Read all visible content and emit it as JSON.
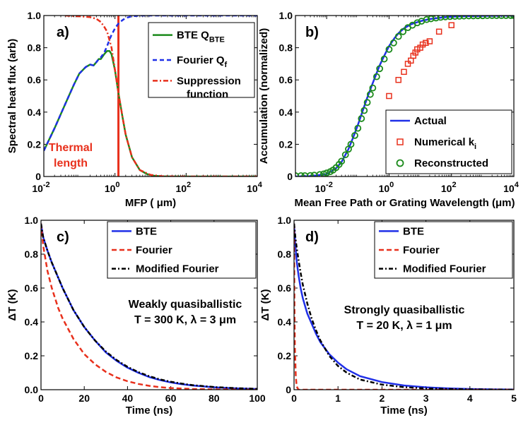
{
  "chart_data": [
    {
      "panel": "a)",
      "type": "line",
      "xscale": "log",
      "xlim": [
        0.01,
        10000
      ],
      "ylim": [
        0,
        1
      ],
      "xticks": [
        {
          "v": 0.01,
          "b": "10",
          "e": "-2"
        },
        {
          "v": 1,
          "b": "10",
          "e": "0"
        },
        {
          "v": 100,
          "b": "10",
          "e": "2"
        },
        {
          "v": 10000,
          "b": "10",
          "e": "4"
        }
      ],
      "yticks": [
        "0",
        "0.2",
        "0.4",
        "0.6",
        "0.8",
        "1.0"
      ],
      "xlabel": "MFP ( μm)",
      "ylabel": "Spectral heat flux (arb)",
      "annotation": {
        "lines": [
          "Thermal",
          "length"
        ],
        "color": "#e8301c"
      },
      "vline_x": 1.25,
      "legend_position": "top-right",
      "legend": [
        {
          "label": "BTE Q",
          "sub": "BTE"
        },
        {
          "label": "Fourier Q",
          "sub": "f"
        },
        {
          "label": "Suppression",
          "label2": "function"
        }
      ],
      "series": [
        {
          "name": "BTE QBTE",
          "color": "#1b8a1b",
          "dash": "solid",
          "x": [
            0.01,
            0.02,
            0.04,
            0.07,
            0.1,
            0.15,
            0.2,
            0.25,
            0.3,
            0.35,
            0.4,
            0.5,
            0.6,
            0.7,
            0.8,
            1.0,
            1.25,
            1.6,
            2,
            3,
            5,
            8,
            12,
            20,
            40,
            100,
            1000,
            10000
          ],
          "y": [
            0.16,
            0.3,
            0.45,
            0.57,
            0.64,
            0.68,
            0.695,
            0.69,
            0.71,
            0.73,
            0.73,
            0.76,
            0.78,
            0.78,
            0.76,
            0.66,
            0.52,
            0.38,
            0.26,
            0.12,
            0.04,
            0.015,
            0.005,
            0.001,
            0,
            0,
            0,
            0
          ]
        },
        {
          "name": "Fourier Qf",
          "color": "#1f2fe8",
          "dash": "6,4",
          "x": [
            0.01,
            0.02,
            0.04,
            0.07,
            0.1,
            0.15,
            0.2,
            0.25,
            0.3,
            0.35,
            0.4,
            0.5,
            0.6,
            0.7,
            0.8,
            1.0,
            1.25,
            1.6,
            2,
            3,
            5,
            10,
            100,
            1000,
            10000
          ],
          "y": [
            0.16,
            0.3,
            0.45,
            0.57,
            0.64,
            0.68,
            0.695,
            0.69,
            0.71,
            0.73,
            0.74,
            0.77,
            0.81,
            0.85,
            0.88,
            0.92,
            0.95,
            0.97,
            0.985,
            0.995,
            1.0,
            1.0,
            1.0,
            1.0,
            1.0
          ]
        },
        {
          "name": "Suppression function",
          "color": "#e8301c",
          "dash": "7,3,2,3",
          "x": [
            0.04,
            0.1,
            0.2,
            0.3,
            0.4,
            0.5,
            0.6,
            0.8,
            1.0,
            1.25,
            1.6,
            2,
            3,
            5,
            10,
            20,
            50,
            100,
            1000,
            10000
          ],
          "y": [
            1.0,
            0.995,
            0.99,
            0.98,
            0.96,
            0.93,
            0.9,
            0.8,
            0.66,
            0.52,
            0.38,
            0.26,
            0.12,
            0.04,
            0.01,
            0.002,
            0,
            0,
            0,
            0
          ]
        }
      ]
    },
    {
      "panel": "b)",
      "type": "line-scatter",
      "xscale": "log",
      "xlim": [
        0.001,
        10000
      ],
      "ylim": [
        0,
        1
      ],
      "xticks": [
        {
          "v": 0.01,
          "b": "10",
          "e": "-2"
        },
        {
          "v": 1,
          "b": "10",
          "e": "0"
        },
        {
          "v": 100,
          "b": "10",
          "e": "2"
        },
        {
          "v": 10000,
          "b": "10",
          "e": "4"
        }
      ],
      "yticks": [
        "0",
        "0.2",
        "0.4",
        "0.6",
        "0.8",
        "1.0"
      ],
      "xlabel": "Mean Free Path or Grating Wavelength (μm)",
      "ylabel": "Accumulation (normalized)",
      "legend_position": "bottom-right",
      "legend": [
        {
          "label": "Actual"
        },
        {
          "label": "Numerical  k",
          "sub": "i"
        },
        {
          "label": "Reconstructed"
        }
      ],
      "series": [
        {
          "name": "Actual",
          "color": "#1f2fe8",
          "kind": "line",
          "x": [
            0.001,
            0.003,
            0.01,
            0.02,
            0.03,
            0.05,
            0.07,
            0.1,
            0.15,
            0.2,
            0.3,
            0.5,
            0.7,
            1,
            1.5,
            2,
            3,
            5,
            10,
            20,
            50,
            100,
            300,
            1000,
            10000
          ],
          "y": [
            0,
            0.002,
            0.015,
            0.05,
            0.09,
            0.17,
            0.24,
            0.32,
            0.42,
            0.49,
            0.58,
            0.69,
            0.75,
            0.81,
            0.86,
            0.89,
            0.92,
            0.945,
            0.965,
            0.978,
            0.988,
            0.993,
            0.996,
            0.998,
            1.0
          ]
        },
        {
          "name": "Numerical ki",
          "color": "#e8301c",
          "kind": "square",
          "x": [
            1,
            2,
            3,
            4,
            5,
            6,
            7,
            8,
            10,
            12,
            15,
            20,
            40,
            100
          ],
          "y": [
            0.5,
            0.6,
            0.65,
            0.7,
            0.72,
            0.75,
            0.77,
            0.79,
            0.8,
            0.82,
            0.83,
            0.84,
            0.9,
            0.94
          ]
        },
        {
          "name": "Reconstructed",
          "color": "#1b8a1b",
          "kind": "circle",
          "x": [
            0.001,
            0.0015,
            0.002,
            0.003,
            0.004,
            0.006,
            0.008,
            0.01,
            0.013,
            0.016,
            0.02,
            0.025,
            0.03,
            0.04,
            0.05,
            0.06,
            0.08,
            0.1,
            0.13,
            0.16,
            0.2,
            0.25,
            0.3,
            0.4,
            0.5,
            0.7,
            1,
            1.4,
            2,
            2.8,
            4,
            5.6,
            8,
            11,
            16,
            22,
            32,
            45,
            64,
            90,
            130,
            180,
            250,
            360,
            500,
            700,
            1000,
            1400,
            2000,
            2800,
            4000,
            5600,
            8000,
            10000
          ],
          "y": [
            0.005,
            0.005,
            0.005,
            0.006,
            0.008,
            0.012,
            0.016,
            0.022,
            0.03,
            0.04,
            0.055,
            0.075,
            0.095,
            0.135,
            0.17,
            0.2,
            0.255,
            0.3,
            0.36,
            0.41,
            0.46,
            0.51,
            0.55,
            0.62,
            0.67,
            0.73,
            0.79,
            0.83,
            0.87,
            0.9,
            0.925,
            0.94,
            0.955,
            0.965,
            0.975,
            0.98,
            0.985,
            0.989,
            0.992,
            0.994,
            0.995,
            0.996,
            0.997,
            0.998,
            0.998,
            0.999,
            0.999,
            1.0,
            1.0,
            1.0,
            1.0,
            1.0,
            1.0,
            1.0
          ]
        }
      ]
    },
    {
      "panel": "c)",
      "type": "line",
      "xscale": "linear",
      "xlim": [
        0,
        100
      ],
      "ylim": [
        0,
        1
      ],
      "xticks": [
        "0",
        "20",
        "40",
        "60",
        "80",
        "100"
      ],
      "yticks": [
        "0.0",
        "0.2",
        "0.4",
        "0.6",
        "0.8",
        "1.0"
      ],
      "xlabel": "Time (ns)",
      "ylabel": "ΔT (K)",
      "annotation": {
        "lines": [
          "Weakly quasiballistic",
          "T = 300 K, λ = 3 μm"
        ],
        "color": "#000000"
      },
      "legend_position": "top-right",
      "legend": [
        {
          "label": "BTE"
        },
        {
          "label": "Fourier"
        },
        {
          "label": "Modified Fourier"
        }
      ],
      "series": [
        {
          "name": "BTE",
          "color": "#1f2fe8",
          "dash": "solid",
          "x": [
            0,
            1,
            3,
            5,
            8,
            10,
            15,
            20,
            25,
            30,
            35,
            40,
            45,
            50,
            55,
            60,
            65,
            70,
            80,
            90,
            100
          ],
          "y": [
            0.98,
            0.9,
            0.82,
            0.75,
            0.66,
            0.6,
            0.47,
            0.37,
            0.29,
            0.22,
            0.17,
            0.13,
            0.1,
            0.075,
            0.057,
            0.043,
            0.033,
            0.025,
            0.014,
            0.008,
            0.004
          ]
        },
        {
          "name": "Fourier",
          "color": "#e8301c",
          "dash": "7,4",
          "x": [
            0,
            1,
            3,
            5,
            8,
            10,
            15,
            20,
            25,
            30,
            35,
            40,
            45,
            50,
            55,
            60,
            70,
            80,
            100
          ],
          "y": [
            0.98,
            0.85,
            0.7,
            0.6,
            0.48,
            0.42,
            0.3,
            0.21,
            0.15,
            0.105,
            0.072,
            0.05,
            0.034,
            0.023,
            0.015,
            0.01,
            0.004,
            0.002,
            0
          ]
        },
        {
          "name": "Modified Fourier",
          "color": "#000000",
          "dash": "6,3,2,3",
          "x": [
            0,
            1,
            3,
            5,
            8,
            10,
            15,
            20,
            25,
            30,
            35,
            40,
            45,
            50,
            55,
            60,
            65,
            70,
            80,
            90,
            100
          ],
          "y": [
            0.98,
            0.9,
            0.82,
            0.75,
            0.66,
            0.6,
            0.47,
            0.37,
            0.29,
            0.225,
            0.175,
            0.135,
            0.104,
            0.08,
            0.061,
            0.047,
            0.036,
            0.027,
            0.016,
            0.009,
            0.005
          ]
        }
      ]
    },
    {
      "panel": "d)",
      "type": "line",
      "xscale": "linear",
      "xlim": [
        0,
        5
      ],
      "ylim": [
        0,
        1
      ],
      "xticks": [
        "0",
        "1",
        "2",
        "3",
        "4",
        "5"
      ],
      "yticks": [
        "0",
        "0.2",
        "0.4",
        "0.6",
        "0.8",
        "1.0"
      ],
      "xlabel": "Time (ns)",
      "ylabel": "ΔT (K)",
      "annotation": {
        "lines": [
          "Strongly quasiballistic",
          "T = 20 K, λ = 1 μm"
        ],
        "color": "#000000"
      },
      "legend_position": "top-right",
      "legend": [
        {
          "label": "BTE"
        },
        {
          "label": "Fourier"
        },
        {
          "label": "Modified Fourier"
        }
      ],
      "series": [
        {
          "name": "BTE",
          "color": "#1f2fe8",
          "dash": "solid",
          "x": [
            0,
            0.03,
            0.06,
            0.1,
            0.15,
            0.2,
            0.3,
            0.4,
            0.5,
            0.6,
            0.8,
            1.0,
            1.2,
            1.5,
            2.0,
            2.5,
            3.0,
            3.5,
            4.0,
            4.5,
            5.0
          ],
          "y": [
            0.98,
            0.85,
            0.76,
            0.68,
            0.6,
            0.54,
            0.45,
            0.39,
            0.33,
            0.28,
            0.21,
            0.16,
            0.12,
            0.08,
            0.045,
            0.025,
            0.014,
            0.008,
            0.004,
            0.002,
            0.001
          ]
        },
        {
          "name": "Fourier",
          "color": "#e8301c",
          "dash": "7,4",
          "x": [
            0,
            0.01,
            0.02,
            0.04,
            0.06,
            0.1,
            0.2,
            1,
            2,
            3,
            4,
            5
          ],
          "y": [
            0.98,
            0.5,
            0.25,
            0.08,
            0.02,
            0.0,
            0,
            0,
            0,
            0,
            0,
            0
          ]
        },
        {
          "name": "Modified Fourier",
          "color": "#000000",
          "dash": "6,3,2,3",
          "x": [
            0,
            0.03,
            0.06,
            0.1,
            0.15,
            0.2,
            0.3,
            0.4,
            0.5,
            0.6,
            0.8,
            1.0,
            1.2,
            1.5,
            2.0,
            2.5,
            3.0,
            3.5,
            4.0,
            4.5,
            5.0
          ],
          "y": [
            0.98,
            0.9,
            0.84,
            0.77,
            0.69,
            0.62,
            0.51,
            0.42,
            0.35,
            0.29,
            0.2,
            0.14,
            0.1,
            0.06,
            0.03,
            0.015,
            0.008,
            0.004,
            0.002,
            0.001,
            0
          ]
        }
      ]
    }
  ]
}
